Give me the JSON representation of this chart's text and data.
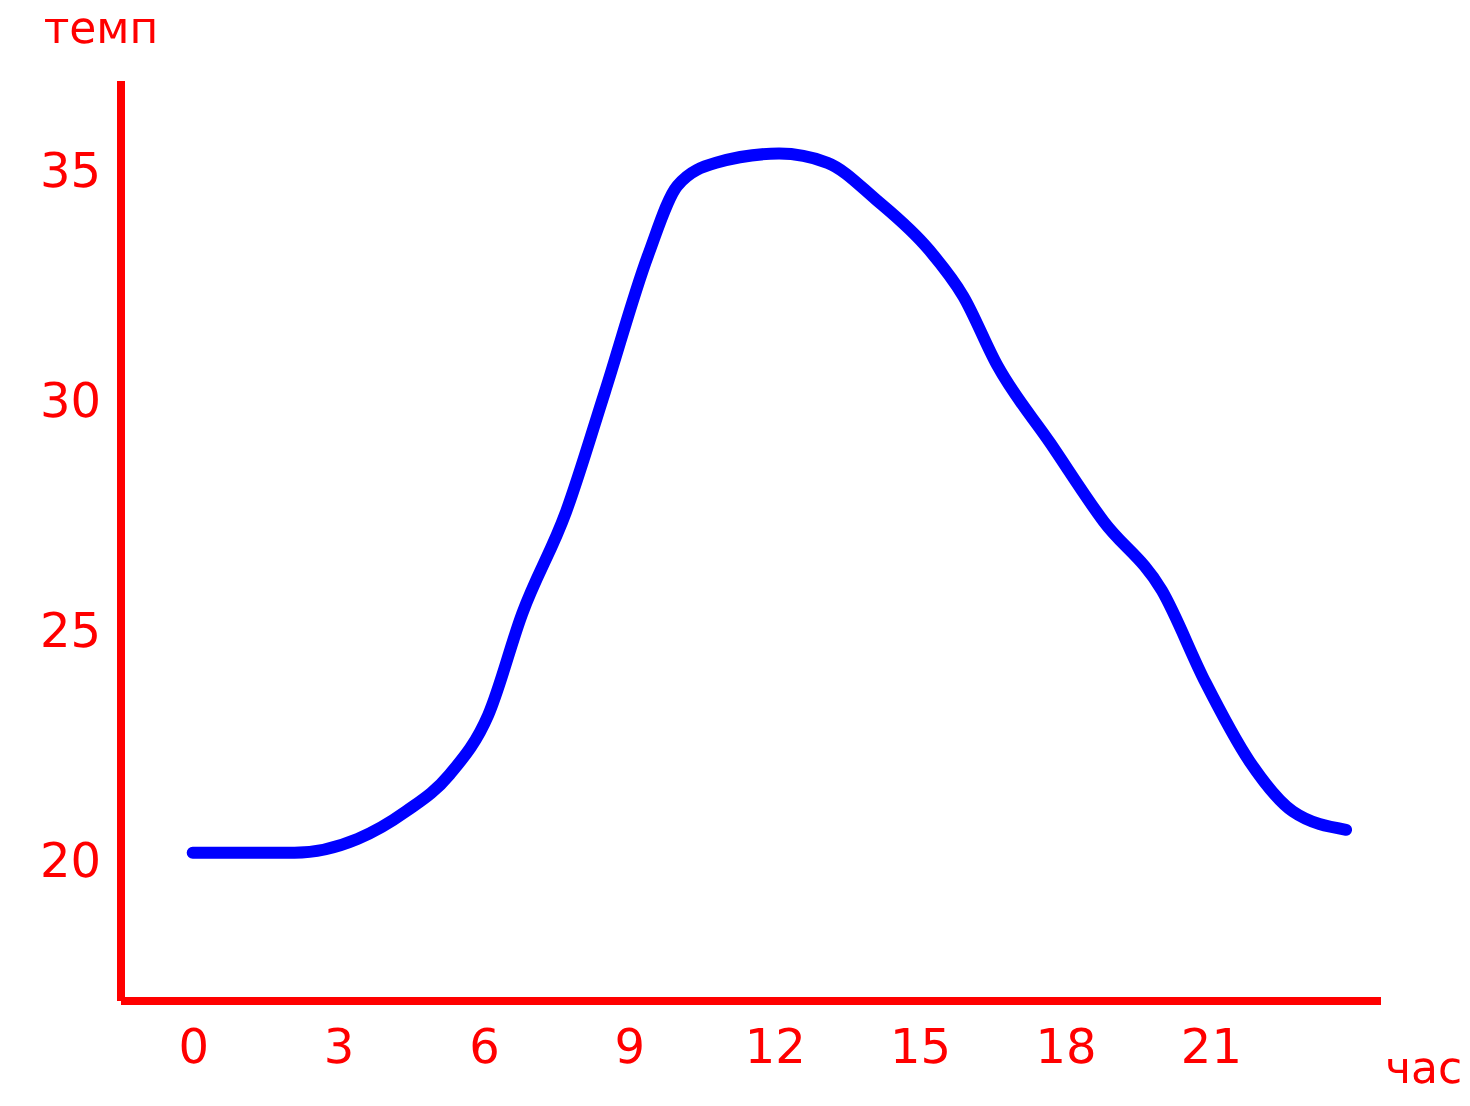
{
  "chart_data": {
    "type": "line",
    "xlabel": "час",
    "ylabel": "темп",
    "color": "#0000ff",
    "x": [
      0,
      2.1,
      3.4,
      4.4,
      5.3,
      6.1,
      6.8,
      7.7,
      8.5,
      9.4,
      10,
      10.8,
      12.1,
      13.1,
      14.1,
      15.2,
      15.9,
      16.6,
      17.7,
      18.8,
      20,
      20.9,
      21.8,
      22.7,
      23.8
    ],
    "values": [
      20.2,
      20.2,
      20.5,
      21.1,
      21.9,
      23.2,
      25.4,
      27.6,
      30.2,
      33.2,
      34.7,
      35.2,
      35.4,
      35.2,
      34.4,
      33.3,
      32.3,
      30.8,
      29.1,
      27.4,
      25.9,
      23.9,
      22.2,
      21.1,
      20.7
    ],
    "xlim": [
      -1.5,
      24.5
    ],
    "ylim": [
      17,
      37
    ],
    "xticks": [
      0,
      3,
      6,
      9,
      12,
      15,
      18,
      21
    ],
    "yticks": [
      20,
      25,
      30,
      35
    ],
    "line_style": "solid"
  }
}
